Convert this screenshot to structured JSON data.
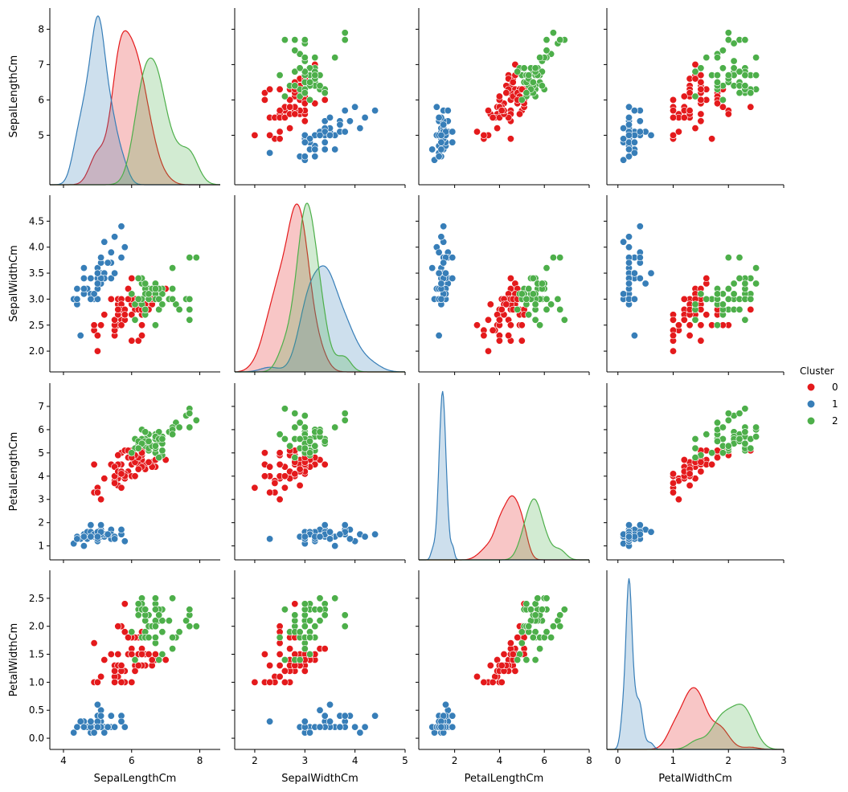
{
  "chart_data": {
    "type": "pairplot",
    "variables": [
      "SepalLengthCm",
      "SepalWidthCm",
      "PetalLengthCm",
      "PetalWidthCm"
    ],
    "axis_ranges": {
      "SepalLengthCm": [
        3.6,
        8.6
      ],
      "SepalWidthCm": [
        1.6,
        5.0
      ],
      "PetalLengthCm": [
        0.4,
        8.0
      ],
      "PetalWidthCm": [
        -0.2,
        3.0
      ]
    },
    "ticks": {
      "x": {
        "SepalLengthCm": [
          "4",
          "6",
          "8"
        ],
        "SepalWidthCm": [
          "2",
          "3",
          "4",
          "5"
        ],
        "PetalLengthCm": [
          "2",
          "4",
          "6",
          "8"
        ],
        "PetalWidthCm": [
          "0",
          "1",
          "2",
          "3"
        ]
      },
      "y": {
        "SepalLengthCm": [
          "5",
          "6",
          "7",
          "8"
        ],
        "SepalWidthCm": [
          "2.0",
          "2.5",
          "3.0",
          "3.5",
          "4.0",
          "4.5"
        ],
        "PetalLengthCm": [
          "1",
          "2",
          "3",
          "4",
          "5",
          "6",
          "7"
        ],
        "PetalWidthCm": [
          "0.0",
          "0.5",
          "1.0",
          "1.5",
          "2.0",
          "2.5"
        ]
      }
    },
    "diagonal": "kde",
    "legend": {
      "title": "Cluster",
      "position": "right",
      "entries": [
        "0",
        "1",
        "2"
      ]
    },
    "clusters": [
      {
        "name": "0",
        "color": "#e41a1c",
        "points": [
          [
            7.0,
            3.2,
            4.7,
            1.4
          ],
          [
            6.4,
            3.2,
            4.5,
            1.5
          ],
          [
            5.5,
            2.3,
            4.0,
            1.3
          ],
          [
            6.5,
            2.8,
            4.6,
            1.5
          ],
          [
            5.7,
            2.8,
            4.5,
            1.3
          ],
          [
            6.3,
            3.3,
            4.7,
            1.6
          ],
          [
            4.9,
            2.4,
            3.3,
            1.0
          ],
          [
            6.6,
            2.9,
            4.6,
            1.3
          ],
          [
            5.2,
            2.7,
            3.9,
            1.4
          ],
          [
            5.0,
            2.0,
            3.5,
            1.0
          ],
          [
            5.9,
            3.0,
            4.2,
            1.5
          ],
          [
            6.0,
            2.2,
            4.0,
            1.0
          ],
          [
            6.1,
            2.9,
            4.7,
            1.4
          ],
          [
            5.6,
            2.9,
            3.6,
            1.3
          ],
          [
            6.7,
            3.1,
            4.4,
            1.4
          ],
          [
            5.6,
            3.0,
            4.5,
            1.5
          ],
          [
            5.8,
            2.7,
            4.1,
            1.0
          ],
          [
            6.2,
            2.2,
            4.5,
            1.5
          ],
          [
            5.6,
            2.5,
            3.9,
            1.1
          ],
          [
            5.9,
            3.2,
            4.8,
            1.8
          ],
          [
            6.1,
            2.8,
            4.0,
            1.3
          ],
          [
            6.3,
            2.5,
            4.9,
            1.5
          ],
          [
            6.1,
            2.8,
            4.7,
            1.2
          ],
          [
            6.4,
            2.9,
            4.3,
            1.3
          ],
          [
            6.6,
            3.0,
            4.4,
            1.4
          ],
          [
            6.0,
            2.9,
            4.5,
            1.5
          ],
          [
            5.7,
            2.6,
            3.5,
            1.0
          ],
          [
            5.5,
            2.4,
            3.8,
            1.1
          ],
          [
            5.5,
            2.4,
            3.7,
            1.0
          ],
          [
            5.8,
            2.7,
            3.9,
            1.2
          ],
          [
            6.0,
            2.7,
            5.1,
            1.6
          ],
          [
            5.4,
            3.0,
            4.5,
            1.5
          ],
          [
            6.0,
            3.4,
            4.5,
            1.6
          ],
          [
            6.7,
            3.1,
            4.7,
            1.5
          ],
          [
            6.3,
            2.3,
            4.4,
            1.3
          ],
          [
            5.6,
            3.0,
            4.1,
            1.3
          ],
          [
            5.5,
            2.5,
            4.0,
            1.3
          ],
          [
            5.5,
            2.6,
            4.4,
            1.2
          ],
          [
            6.1,
            3.0,
            4.6,
            1.4
          ],
          [
            5.8,
            2.6,
            4.0,
            1.2
          ],
          [
            5.0,
            2.3,
            3.3,
            1.0
          ],
          [
            5.6,
            2.7,
            4.2,
            1.3
          ],
          [
            5.7,
            3.0,
            4.2,
            1.2
          ],
          [
            5.7,
            2.9,
            4.2,
            1.3
          ],
          [
            6.2,
            2.9,
            4.3,
            1.3
          ],
          [
            5.1,
            2.5,
            3.0,
            1.1
          ],
          [
            5.7,
            2.8,
            4.1,
            1.3
          ],
          [
            5.8,
            2.7,
            5.1,
            1.9
          ],
          [
            4.9,
            2.5,
            4.5,
            1.7
          ],
          [
            5.7,
            2.5,
            5.0,
            2.0
          ],
          [
            5.8,
            2.8,
            5.1,
            2.4
          ],
          [
            6.0,
            2.2,
            5.0,
            1.5
          ],
          [
            5.6,
            2.8,
            4.9,
            2.0
          ],
          [
            6.3,
            2.7,
            4.9,
            1.8
          ],
          [
            6.2,
            2.8,
            4.8,
            1.8
          ],
          [
            6.1,
            3.0,
            4.9,
            1.8
          ],
          [
            6.3,
            2.8,
            5.1,
            1.5
          ],
          [
            6.0,
            3.0,
            4.8,
            1.8
          ],
          [
            5.8,
            2.7,
            5.1,
            1.9
          ],
          [
            6.3,
            2.5,
            5.0,
            1.9
          ],
          [
            5.9,
            3.0,
            5.1,
            1.8
          ],
          [
            6.5,
            2.8,
            4.6,
            1.5
          ]
        ]
      },
      {
        "name": "1",
        "color": "#377eb8",
        "points": [
          [
            5.1,
            3.5,
            1.4,
            0.2
          ],
          [
            4.9,
            3.0,
            1.4,
            0.2
          ],
          [
            4.7,
            3.2,
            1.3,
            0.2
          ],
          [
            4.6,
            3.1,
            1.5,
            0.2
          ],
          [
            5.0,
            3.6,
            1.4,
            0.2
          ],
          [
            5.4,
            3.9,
            1.7,
            0.4
          ],
          [
            4.6,
            3.4,
            1.4,
            0.3
          ],
          [
            5.0,
            3.4,
            1.5,
            0.2
          ],
          [
            4.4,
            2.9,
            1.4,
            0.2
          ],
          [
            4.9,
            3.1,
            1.5,
            0.1
          ],
          [
            5.4,
            3.7,
            1.5,
            0.2
          ],
          [
            4.8,
            3.4,
            1.6,
            0.2
          ],
          [
            4.8,
            3.0,
            1.4,
            0.1
          ],
          [
            4.3,
            3.0,
            1.1,
            0.1
          ],
          [
            5.8,
            4.0,
            1.2,
            0.2
          ],
          [
            5.7,
            4.4,
            1.5,
            0.4
          ],
          [
            5.4,
            3.9,
            1.3,
            0.4
          ],
          [
            5.1,
            3.5,
            1.4,
            0.3
          ],
          [
            5.7,
            3.8,
            1.7,
            0.3
          ],
          [
            5.1,
            3.8,
            1.5,
            0.3
          ],
          [
            5.4,
            3.4,
            1.7,
            0.2
          ],
          [
            5.1,
            3.7,
            1.5,
            0.4
          ],
          [
            4.6,
            3.6,
            1.0,
            0.2
          ],
          [
            5.1,
            3.3,
            1.7,
            0.5
          ],
          [
            4.8,
            3.4,
            1.9,
            0.2
          ],
          [
            5.0,
            3.0,
            1.6,
            0.2
          ],
          [
            5.0,
            3.4,
            1.6,
            0.4
          ],
          [
            5.2,
            3.5,
            1.5,
            0.2
          ],
          [
            5.2,
            3.4,
            1.4,
            0.2
          ],
          [
            4.7,
            3.2,
            1.6,
            0.2
          ],
          [
            4.8,
            3.1,
            1.6,
            0.2
          ],
          [
            5.4,
            3.4,
            1.5,
            0.4
          ],
          [
            5.2,
            4.1,
            1.5,
            0.1
          ],
          [
            5.5,
            4.2,
            1.4,
            0.2
          ],
          [
            4.9,
            3.1,
            1.5,
            0.1
          ],
          [
            5.0,
            3.2,
            1.2,
            0.2
          ],
          [
            5.5,
            3.5,
            1.3,
            0.2
          ],
          [
            4.9,
            3.1,
            1.5,
            0.1
          ],
          [
            4.4,
            3.0,
            1.3,
            0.2
          ],
          [
            5.1,
            3.4,
            1.5,
            0.2
          ],
          [
            5.0,
            3.5,
            1.3,
            0.3
          ],
          [
            4.5,
            2.3,
            1.3,
            0.3
          ],
          [
            4.4,
            3.2,
            1.3,
            0.2
          ],
          [
            5.0,
            3.5,
            1.6,
            0.6
          ],
          [
            5.1,
            3.8,
            1.9,
            0.4
          ],
          [
            4.8,
            3.0,
            1.4,
            0.3
          ],
          [
            5.1,
            3.8,
            1.6,
            0.2
          ],
          [
            4.6,
            3.2,
            1.4,
            0.2
          ],
          [
            5.3,
            3.7,
            1.5,
            0.2
          ],
          [
            5.0,
            3.3,
            1.4,
            0.2
          ]
        ]
      },
      {
        "name": "2",
        "color": "#4daf4a",
        "points": [
          [
            6.9,
            3.1,
            4.9,
            1.5
          ],
          [
            6.7,
            3.0,
            5.0,
            1.7
          ],
          [
            6.8,
            2.8,
            4.8,
            1.4
          ],
          [
            6.3,
            3.3,
            6.0,
            2.5
          ],
          [
            7.1,
            3.0,
            5.9,
            2.1
          ],
          [
            6.3,
            2.9,
            5.6,
            1.8
          ],
          [
            6.5,
            3.0,
            5.8,
            2.2
          ],
          [
            7.6,
            3.0,
            6.6,
            2.1
          ],
          [
            7.3,
            2.9,
            6.3,
            1.8
          ],
          [
            6.7,
            2.5,
            5.8,
            1.8
          ],
          [
            7.2,
            3.6,
            6.1,
            2.5
          ],
          [
            6.5,
            3.2,
            5.1,
            2.0
          ],
          [
            6.4,
            2.7,
            5.3,
            1.9
          ],
          [
            6.8,
            3.0,
            5.5,
            2.1
          ],
          [
            6.4,
            3.2,
            5.3,
            2.3
          ],
          [
            6.5,
            3.0,
            5.5,
            1.8
          ],
          [
            7.7,
            3.8,
            6.7,
            2.2
          ],
          [
            7.7,
            2.6,
            6.9,
            2.3
          ],
          [
            6.9,
            3.2,
            5.7,
            2.3
          ],
          [
            7.7,
            2.8,
            6.7,
            2.0
          ],
          [
            6.7,
            3.3,
            5.7,
            2.1
          ],
          [
            7.2,
            3.2,
            6.0,
            1.8
          ],
          [
            6.4,
            2.8,
            5.6,
            2.1
          ],
          [
            7.2,
            3.0,
            5.8,
            1.6
          ],
          [
            7.4,
            2.8,
            6.1,
            1.9
          ],
          [
            7.9,
            3.8,
            6.4,
            2.0
          ],
          [
            6.4,
            2.8,
            5.6,
            2.2
          ],
          [
            6.1,
            2.6,
            5.6,
            1.4
          ],
          [
            7.7,
            3.0,
            6.1,
            2.3
          ],
          [
            6.3,
            3.4,
            5.6,
            2.4
          ],
          [
            6.4,
            3.1,
            5.5,
            1.8
          ],
          [
            6.9,
            3.1,
            5.4,
            2.1
          ],
          [
            6.7,
            3.1,
            5.6,
            2.4
          ],
          [
            6.9,
            3.1,
            5.1,
            2.3
          ],
          [
            6.8,
            3.2,
            5.9,
            2.3
          ],
          [
            6.7,
            3.3,
            5.7,
            2.5
          ],
          [
            6.7,
            3.0,
            5.2,
            2.3
          ],
          [
            6.5,
            3.0,
            5.2,
            2.0
          ],
          [
            6.2,
            3.4,
            5.4,
            2.3
          ],
          [
            6.2,
            3.4,
            5.5,
            2.2
          ],
          [
            6.1,
            2.9,
            5.2,
            1.4
          ],
          [
            6.0,
            3.1,
            5.0,
            1.9
          ],
          [
            6.6,
            3.2,
            5.3,
            2.0
          ],
          [
            6.8,
            3.0,
            5.6,
            2.2
          ],
          [
            6.9,
            2.9,
            5.6,
            1.9
          ],
          [
            6.3,
            3.0,
            5.4,
            2.3
          ],
          [
            6.7,
            3.2,
            5.3,
            2.0
          ],
          [
            6.2,
            3.0,
            5.2,
            2.4
          ],
          [
            6.4,
            3.3,
            5.9,
            2.3
          ],
          [
            6.5,
            3.1,
            5.5,
            1.8
          ]
        ]
      }
    ]
  }
}
